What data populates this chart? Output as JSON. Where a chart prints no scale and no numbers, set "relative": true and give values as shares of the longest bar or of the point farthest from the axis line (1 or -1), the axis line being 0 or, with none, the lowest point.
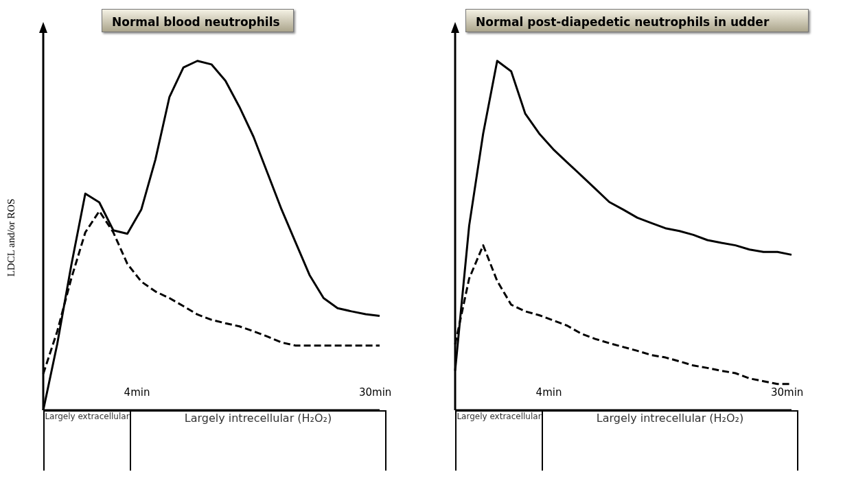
{
  "chart_data": [
    {
      "type": "line",
      "title": "Normal blood neutrophils",
      "ylabel": "LDCL and/or ROS",
      "relative": true,
      "marker": "none",
      "categories": [
        null,
        null,
        null,
        null,
        null,
        null,
        null,
        null,
        null,
        null,
        null,
        null,
        null,
        null,
        null,
        null,
        null,
        null,
        null,
        null,
        null,
        null,
        null,
        null,
        null
      ],
      "series": [
        {
          "color": "#000000",
          "line_style": "solid",
          "values": [
            0,
            0.19,
            0.415,
            0.62,
            0.595,
            0.515,
            0.505,
            0.575,
            0.717,
            0.896,
            0.981,
            1.0,
            0.99,
            0.943,
            0.868,
            0.783,
            0.679,
            0.575,
            0.481,
            0.387,
            0.321,
            0.292,
            0.283,
            0.275,
            0.27
          ]
        },
        {
          "color": "#000000",
          "line_style": "dashed",
          "values": [
            0.104,
            0.226,
            0.377,
            0.509,
            0.57,
            0.509,
            0.419,
            0.368,
            0.34,
            0.321,
            0.298,
            0.274,
            0.259,
            0.249,
            0.24,
            0.226,
            0.211,
            0.194,
            0.185,
            0.185,
            0.185,
            0.185,
            0.185,
            0.185,
            0.185
          ]
        }
      ],
      "annotations": [
        "4min",
        "30min",
        "Largely extracellular",
        "Largely intrecellular (H₂O₂)"
      ]
    },
    {
      "type": "line",
      "title": "Normal post-diapedetic neutrophils in udder",
      "relative": true,
      "marker": "none",
      "categories": [
        null,
        null,
        null,
        null,
        null,
        null,
        null,
        null,
        null,
        null,
        null,
        null,
        null,
        null,
        null,
        null,
        null,
        null,
        null,
        null,
        null,
        null,
        null,
        null,
        null
      ],
      "series": [
        {
          "color": "#000000",
          "line_style": "solid",
          "values": [
            0.113,
            0.528,
            0.792,
            1.0,
            0.97,
            0.849,
            0.792,
            0.747,
            0.709,
            0.672,
            0.634,
            0.596,
            0.574,
            0.551,
            0.536,
            0.521,
            0.513,
            0.502,
            0.487,
            0.479,
            0.472,
            0.46,
            0.453,
            0.453,
            0.445
          ]
        },
        {
          "color": "#000000",
          "line_style": "dashed",
          "values": [
            0.189,
            0.377,
            0.472,
            0.37,
            0.302,
            0.283,
            0.272,
            0.257,
            0.242,
            0.219,
            0.204,
            0.192,
            0.181,
            0.17,
            0.158,
            0.151,
            0.14,
            0.128,
            0.121,
            0.113,
            0.106,
            0.091,
            0.083,
            0.075,
            0.075
          ]
        }
      ],
      "annotations": [
        "4min",
        "30min",
        "Largely extracellular",
        "Largely intrecellular (H₂O₂)"
      ]
    }
  ]
}
